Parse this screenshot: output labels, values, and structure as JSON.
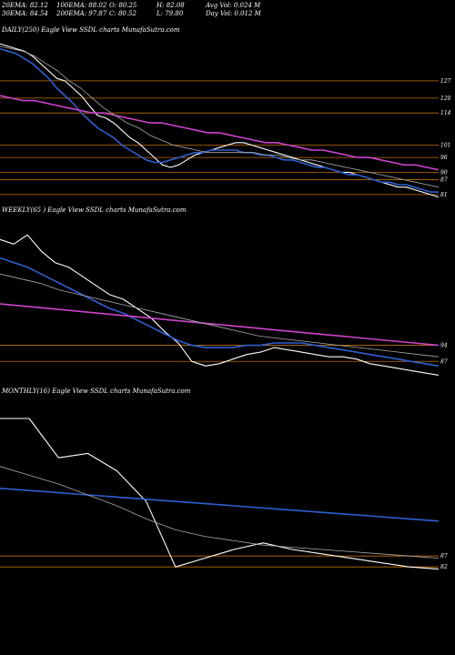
{
  "header": {
    "row1": [
      "20EMA: 82.12",
      "100EMA: 88.02",
      "O: 80.25",
      "H: 82.08",
      "Avg Vol: 0.024  M"
    ],
    "row2": [
      "30EMA: 84.54",
      "200EMA: 97.87",
      "C: 80.52",
      "L: 79.80",
      "Day Vol: 0.012  M"
    ]
  },
  "colors": {
    "background": "#000000",
    "price": "#ffffff",
    "ema_fast": "#2f5fd0",
    "ema_slow": "#cc44cc",
    "ma_gray": "#aaaaaa",
    "level_line": "#c07000"
  },
  "panels": [
    {
      "label": "DAILY(250) Eagle  View  SSDL  charts MunafaSutra.com",
      "levels": [
        "127",
        "120",
        "114",
        "101",
        "96",
        "90",
        "87",
        "81"
      ]
    },
    {
      "label": "WEEKLY(65                ) Eagle  View  SSDL  charts MunafaSutra.com",
      "levels": [
        "94",
        "87"
      ]
    },
    {
      "label": "MONTHLY(16) Eagle  View  SSDL  charts MunafaSutra.com",
      "levels": [
        "87",
        "82"
      ]
    }
  ],
  "chart_data": [
    {
      "type": "line",
      "timeframe": "DAILY(250)",
      "y_axis_ticks": [
        127,
        120,
        114,
        101,
        96,
        90,
        87,
        81
      ],
      "ylim": [
        78,
        145
      ],
      "series": [
        {
          "name": "",
          "color": "#ffffff",
          "values": [
            142,
            141,
            140,
            139,
            137,
            134,
            131,
            128,
            127,
            124,
            121,
            117,
            113,
            112,
            110,
            107,
            104,
            102,
            99,
            96,
            93,
            92,
            93,
            95,
            97,
            98,
            99,
            100,
            101,
            102,
            102,
            101,
            100,
            99,
            98,
            97,
            96,
            95,
            94,
            93,
            92,
            91,
            90,
            90,
            89,
            88,
            87,
            86,
            85,
            84,
            84,
            83,
            82,
            81,
            80
          ]
        },
        {
          "name": "",
          "color": "#2f5fd0",
          "values": [
            140,
            139,
            138,
            136,
            134,
            131,
            128,
            124,
            121,
            118,
            114,
            111,
            108,
            106,
            104,
            101,
            99,
            97,
            95,
            94,
            94,
            95,
            96,
            97,
            98,
            98,
            99,
            99,
            99,
            99,
            98,
            98,
            97,
            97,
            96,
            95,
            95,
            94,
            93,
            92,
            92,
            91,
            90,
            89,
            89,
            88,
            87,
            86,
            86,
            85,
            85,
            84,
            83,
            82,
            82
          ]
        },
        {
          "name": "",
          "color": "#cc44cc",
          "values": [
            121,
            120,
            119,
            119,
            118,
            117,
            116,
            115,
            114,
            114,
            113,
            112,
            111,
            110,
            110,
            109,
            108,
            107,
            106,
            106,
            105,
            104,
            103,
            102,
            102,
            101,
            100,
            99,
            99,
            98,
            97,
            96,
            96,
            95,
            94,
            93,
            93,
            92,
            91
          ]
        },
        {
          "name": "",
          "color": "#aaaaaa",
          "values": [
            141,
            140,
            139,
            137,
            134,
            131,
            127,
            124,
            120,
            116,
            113,
            110,
            108,
            105,
            103,
            101,
            100,
            99,
            98,
            98,
            98,
            98,
            98,
            97,
            97,
            96,
            95,
            95,
            94,
            93,
            92,
            91,
            90,
            89,
            88,
            87,
            86,
            85,
            84
          ]
        }
      ]
    },
    {
      "type": "line",
      "timeframe": "WEEKLY",
      "y_axis_ticks": [
        94,
        87
      ],
      "ylim": [
        78,
        150
      ],
      "series": [
        {
          "name": "",
          "color": "#ffffff",
          "values": [
            140,
            138,
            142,
            135,
            130,
            128,
            124,
            120,
            116,
            114,
            110,
            106,
            100,
            95,
            87,
            85,
            86,
            88,
            90,
            91,
            93,
            92,
            91,
            90,
            89,
            89,
            88,
            86,
            85,
            84,
            83,
            82,
            81
          ]
        },
        {
          "name": "",
          "color": "#2f5fd0",
          "values": [
            132,
            130,
            128,
            125,
            122,
            119,
            116,
            113,
            110,
            108,
            105,
            102,
            99,
            96,
            94,
            93,
            93,
            93,
            94,
            94,
            95,
            95,
            95,
            94,
            93,
            92,
            91,
            90,
            89,
            88,
            87,
            86,
            85
          ]
        },
        {
          "name": "",
          "color": "#cc44cc",
          "values": [
            112,
            111,
            110,
            109,
            108,
            107,
            106,
            105,
            104,
            103,
            102,
            101,
            100,
            99,
            98,
            97,
            96,
            95,
            94
          ]
        },
        {
          "name": "",
          "color": "#aaaaaa",
          "values": [
            125,
            123,
            121,
            118,
            116,
            114,
            112,
            110,
            108,
            106,
            104,
            102,
            100,
            98,
            97,
            96,
            95,
            94,
            93,
            92,
            91,
            90,
            89
          ]
        }
      ]
    },
    {
      "type": "line",
      "timeframe": "MONTHLY(16)",
      "y_axis_ticks": [
        87,
        82
      ],
      "ylim": [
        75,
        160
      ],
      "series": [
        {
          "name": "",
          "color": "#ffffff",
          "values": [
            150,
            150,
            132,
            134,
            126,
            112,
            82,
            86,
            90,
            93,
            90,
            88,
            86,
            84,
            82,
            81
          ]
        },
        {
          "name": "",
          "color": "#2f5fd0",
          "values": [
            118,
            117,
            116,
            115,
            114,
            113,
            112,
            111,
            110,
            109,
            108,
            107,
            106,
            105,
            104,
            103
          ]
        },
        {
          "name": "",
          "color": "#aaaaaa",
          "values": [
            128,
            124,
            120,
            115,
            110,
            104,
            99,
            96,
            94,
            92,
            91,
            90,
            89,
            88,
            87,
            86
          ]
        }
      ]
    }
  ]
}
